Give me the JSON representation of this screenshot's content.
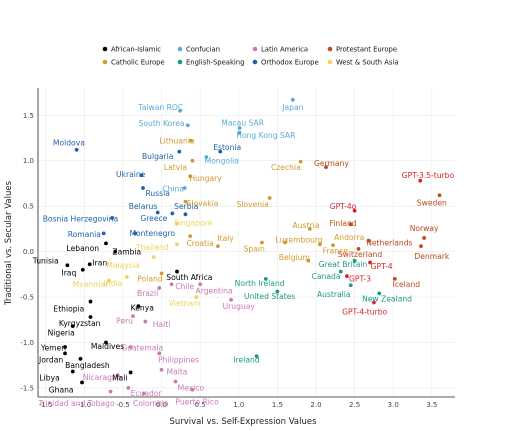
{
  "chart_data": {
    "type": "scatter",
    "title": "",
    "xlabel": "Survival vs. Self-Expression Values",
    "ylabel": "Traditional vs. Secular Values",
    "xlim": [
      -1.6,
      3.8
    ],
    "ylim": [
      -1.6,
      1.8
    ],
    "xticks": [
      -1.5,
      -1.0,
      -0.5,
      0.0,
      0.5,
      1.0,
      1.5,
      2.0,
      2.5,
      3.0,
      3.5
    ],
    "yticks": [
      -1.5,
      -1.0,
      -0.5,
      0.0,
      0.5,
      1.0,
      1.5
    ],
    "xtick_labels": [
      "-1.5",
      "-1.0",
      "-0.5",
      "0.0",
      "0.5",
      "1.0",
      "1.5",
      "2.0",
      "2.5",
      "3.0",
      "3.5"
    ],
    "ytick_labels": [
      "-1.5",
      "-1.0",
      "-0.5",
      "0.0",
      "0.5",
      "1.0",
      "1.5"
    ],
    "grid": true,
    "legend_position": "top",
    "series": [
      {
        "key": "african_islamic",
        "name": "African-Islamic",
        "color": "#000000"
      },
      {
        "key": "confucian",
        "name": "Confucian",
        "color": "#5aabd6"
      },
      {
        "key": "latin_america",
        "name": "Latin America",
        "color": "#c77bb6"
      },
      {
        "key": "protestant_europe",
        "name": "Protestant Europe",
        "color": "#c0491e"
      },
      {
        "key": "catholic_europe",
        "name": "Catholic Europe",
        "color": "#d39a2a"
      },
      {
        "key": "english_speaking",
        "name": "English-Speaking",
        "color": "#1a9a85"
      },
      {
        "key": "orthodox_europe",
        "name": "Orthodox Europe",
        "color": "#1e62a8"
      },
      {
        "key": "west_south_asia",
        "name": "West & South Asia",
        "color": "#efd35a"
      },
      {
        "key": "llm",
        "name": "",
        "color": "#d62424"
      }
    ],
    "points": [
      {
        "label": "Japan",
        "group": "confucian",
        "x": 1.7,
        "y": 1.67,
        "lx": 1.7,
        "ly": 1.59
      },
      {
        "label": "Taiwan ROC",
        "group": "confucian",
        "x": 0.24,
        "y": 1.55,
        "lx": -0.01,
        "ly": 1.59
      },
      {
        "label": "South Korea",
        "group": "confucian",
        "x": 0.34,
        "y": 1.39,
        "lx": 0.0,
        "ly": 1.41
      },
      {
        "label": "Macau SAR",
        "group": "confucian",
        "x": 1.01,
        "y": 1.36,
        "lx": 1.05,
        "ly": 1.42
      },
      {
        "label": "Hong Kong SAR",
        "group": "confucian",
        "x": 1.01,
        "y": 1.31,
        "lx": 1.35,
        "ly": 1.28
      },
      {
        "label": "Mongolia",
        "group": "confucian",
        "x": 0.58,
        "y": 1.04,
        "lx": 0.78,
        "ly": 1.0
      },
      {
        "label": "China",
        "group": "confucian",
        "x": 0.3,
        "y": 0.7,
        "lx": 0.15,
        "ly": 0.69
      },
      {
        "label": "Estonia",
        "group": "orthodox_europe",
        "x": 0.76,
        "y": 1.1,
        "lx": 0.85,
        "ly": 1.15
      },
      {
        "label": "Bulgaria",
        "group": "orthodox_europe",
        "x": 0.23,
        "y": 1.1,
        "lx": -0.05,
        "ly": 1.05
      },
      {
        "label": "Moldova",
        "group": "orthodox_europe",
        "x": -1.1,
        "y": 1.12,
        "lx": -1.2,
        "ly": 1.2
      },
      {
        "label": "Ukraine",
        "group": "orthodox_europe",
        "x": -0.26,
        "y": 0.84,
        "lx": -0.4,
        "ly": 0.85
      },
      {
        "label": "Russia",
        "group": "orthodox_europe",
        "x": -0.24,
        "y": 0.7,
        "lx": -0.05,
        "ly": 0.64
      },
      {
        "label": "Belarus",
        "group": "orthodox_europe",
        "x": -0.05,
        "y": 0.43,
        "lx": -0.24,
        "ly": 0.5
      },
      {
        "label": "Serbia",
        "group": "orthodox_europe",
        "x": 0.14,
        "y": 0.42,
        "lx": 0.32,
        "ly": 0.5
      },
      {
        "label": "Greece",
        "group": "orthodox_europe",
        "x": 0.31,
        "y": 0.41,
        "lx": -0.1,
        "ly": 0.37
      },
      {
        "label": "Romania",
        "group": "orthodox_europe",
        "x": -0.75,
        "y": 0.2,
        "lx": -1.0,
        "ly": 0.19
      },
      {
        "label": "Montenegro",
        "group": "orthodox_europe",
        "x": -0.34,
        "y": 0.2,
        "lx": -0.12,
        "ly": 0.2
      },
      {
        "label": "Bosnia Herzegovina",
        "group": "orthodox_europe",
        "x": -0.64,
        "y": 0.37,
        "lx": -1.05,
        "ly": 0.36
      },
      {
        "label": "Lithuania",
        "group": "catholic_europe",
        "x": 0.38,
        "y": 1.22,
        "lx": 0.2,
        "ly": 1.22
      },
      {
        "label": "Latvia",
        "group": "catholic_europe",
        "x": 0.4,
        "y": 1.0,
        "lx": 0.18,
        "ly": 0.93
      },
      {
        "label": "Hungary",
        "group": "catholic_europe",
        "x": 0.37,
        "y": 0.83,
        "lx": 0.57,
        "ly": 0.81
      },
      {
        "label": "Czechia",
        "group": "catholic_europe",
        "x": 1.8,
        "y": 0.99,
        "lx": 1.61,
        "ly": 0.93
      },
      {
        "label": "Slovakia",
        "group": "catholic_europe",
        "x": 0.31,
        "y": 0.55,
        "lx": 0.53,
        "ly": 0.53
      },
      {
        "label": "Slovenia",
        "group": "catholic_europe",
        "x": 1.4,
        "y": 0.59,
        "lx": 1.18,
        "ly": 0.52
      },
      {
        "label": "Croatia",
        "group": "catholic_europe",
        "x": 0.37,
        "y": 0.17,
        "lx": 0.5,
        "ly": 0.09
      },
      {
        "label": "Poland",
        "group": "catholic_europe",
        "x": 0.0,
        "y": -0.24,
        "lx": -0.15,
        "ly": -0.3
      },
      {
        "label": "Italy",
        "group": "catholic_europe",
        "x": 0.73,
        "y": 0.06,
        "lx": 0.83,
        "ly": 0.15
      },
      {
        "label": "Spain",
        "group": "catholic_europe",
        "x": 1.3,
        "y": 0.1,
        "lx": 1.2,
        "ly": 0.03
      },
      {
        "label": "Austria",
        "group": "catholic_europe",
        "x": 1.92,
        "y": 0.25,
        "lx": 1.87,
        "ly": 0.29
      },
      {
        "label": "Luxembourg",
        "group": "catholic_europe",
        "x": 1.6,
        "y": 0.1,
        "lx": 1.78,
        "ly": 0.13
      },
      {
        "label": "Belgium",
        "group": "catholic_europe",
        "x": 1.9,
        "y": -0.1,
        "lx": 1.72,
        "ly": -0.06
      },
      {
        "label": "France",
        "group": "catholic_europe",
        "x": 2.05,
        "y": 0.08,
        "lx": 2.25,
        "ly": 0.01
      },
      {
        "label": "Andorra",
        "group": "catholic_europe",
        "x": 2.22,
        "y": 0.07,
        "lx": 2.43,
        "ly": 0.16
      },
      {
        "label": "Germany",
        "group": "protestant_europe",
        "x": 2.13,
        "y": 0.93,
        "lx": 2.2,
        "ly": 0.97
      },
      {
        "label": "Sweden",
        "group": "protestant_europe",
        "x": 3.6,
        "y": 0.62,
        "lx": 3.5,
        "ly": 0.54
      },
      {
        "label": "Finland",
        "group": "protestant_europe",
        "x": 2.45,
        "y": 0.3,
        "lx": 2.35,
        "ly": 0.31
      },
      {
        "label": "Netherlands",
        "group": "protestant_europe",
        "x": 2.68,
        "y": 0.12,
        "lx": 2.95,
        "ly": 0.1
      },
      {
        "label": "Switzerland",
        "group": "protestant_europe",
        "x": 2.55,
        "y": 0.03,
        "lx": 2.57,
        "ly": -0.03
      },
      {
        "label": "Norway",
        "group": "protestant_europe",
        "x": 3.4,
        "y": 0.15,
        "lx": 3.4,
        "ly": 0.26
      },
      {
        "label": "Denmark",
        "group": "protestant_europe",
        "x": 3.36,
        "y": 0.06,
        "lx": 3.5,
        "ly": -0.05
      },
      {
        "label": "Iceland",
        "group": "protestant_europe",
        "x": 3.02,
        "y": -0.3,
        "lx": 3.17,
        "ly": -0.36
      },
      {
        "label": "Great Britain",
        "group": "english_speaking",
        "x": 2.5,
        "y": -0.1,
        "lx": 2.35,
        "ly": -0.14
      },
      {
        "label": "Canada",
        "group": "english_speaking",
        "x": 2.32,
        "y": -0.22,
        "lx": 2.13,
        "ly": -0.27
      },
      {
        "label": "Australia",
        "group": "english_speaking",
        "x": 2.45,
        "y": -0.37,
        "lx": 2.23,
        "ly": -0.47
      },
      {
        "label": "New Zealand",
        "group": "english_speaking",
        "x": 2.82,
        "y": -0.46,
        "lx": 2.92,
        "ly": -0.52
      },
      {
        "label": "United States",
        "group": "english_speaking",
        "x": 1.5,
        "y": -0.44,
        "lx": 1.4,
        "ly": -0.49
      },
      {
        "label": "North Ireland",
        "group": "english_speaking",
        "x": 1.35,
        "y": -0.3,
        "lx": 1.27,
        "ly": -0.35
      },
      {
        "label": "Ireland",
        "group": "english_speaking",
        "x": 1.23,
        "y": -1.15,
        "lx": 1.1,
        "ly": -1.19
      },
      {
        "label": "Singapore",
        "group": "west_south_asia",
        "x": 0.2,
        "y": 0.31,
        "lx": 0.41,
        "ly": 0.32
      },
      {
        "label": "Thailand",
        "group": "west_south_asia",
        "x": 0.2,
        "y": 0.08,
        "lx": -0.12,
        "ly": 0.05
      },
      {
        "label": "Malaysia",
        "group": "west_south_asia",
        "x": -0.1,
        "y": -0.06,
        "lx": -0.5,
        "ly": -0.15
      },
      {
        "label": "India",
        "group": "west_south_asia",
        "x": -0.45,
        "y": -0.28,
        "lx": -0.63,
        "ly": -0.35
      },
      {
        "label": "Myanmar",
        "group": "west_south_asia",
        "x": -0.68,
        "y": -0.32,
        "lx": -0.92,
        "ly": -0.36
      },
      {
        "label": "Vietnam",
        "group": "west_south_asia",
        "x": 0.45,
        "y": -0.5,
        "lx": 0.3,
        "ly": -0.57
      },
      {
        "label": "Chile",
        "group": "latin_america",
        "x": 0.13,
        "y": -0.36,
        "lx": 0.3,
        "ly": -0.38
      },
      {
        "label": "Brazil",
        "group": "latin_america",
        "x": -0.03,
        "y": -0.4,
        "lx": -0.18,
        "ly": -0.46
      },
      {
        "label": "Argentina",
        "group": "latin_america",
        "x": 0.5,
        "y": -0.36,
        "lx": 0.68,
        "ly": -0.43
      },
      {
        "label": "Uruguay",
        "group": "latin_america",
        "x": 0.9,
        "y": -0.53,
        "lx": 1.0,
        "ly": -0.6
      },
      {
        "label": "Peru",
        "group": "latin_america",
        "x": -0.37,
        "y": -0.71,
        "lx": -0.48,
        "ly": -0.76
      },
      {
        "label": "Haiti",
        "group": "latin_america",
        "x": -0.21,
        "y": -0.77,
        "lx": 0.0,
        "ly": -0.8
      },
      {
        "label": "Guatemala",
        "group": "latin_america",
        "x": -0.4,
        "y": -1.05,
        "lx": -0.25,
        "ly": -1.06
      },
      {
        "label": "Philippines",
        "group": "latin_america",
        "x": -0.03,
        "y": -1.12,
        "lx": 0.22,
        "ly": -1.19
      },
      {
        "label": "Malta",
        "group": "latin_america",
        "x": 0.0,
        "y": -1.3,
        "lx": 0.2,
        "ly": -1.32
      },
      {
        "label": "Mexico",
        "group": "latin_america",
        "x": 0.18,
        "y": -1.43,
        "lx": 0.38,
        "ly": -1.5
      },
      {
        "label": "Nicaragua",
        "group": "latin_america",
        "x": -0.57,
        "y": -1.36,
        "lx": -0.77,
        "ly": -1.38
      },
      {
        "label": "Ecuador",
        "group": "latin_america",
        "x": -0.43,
        "y": -1.5,
        "lx": -0.2,
        "ly": -1.56
      },
      {
        "label": "Colombia",
        "group": "latin_america",
        "x": -0.23,
        "y": -1.56,
        "lx": -0.14,
        "ly": -1.67
      },
      {
        "label": "Trinidad and Tobago",
        "group": "latin_america",
        "x": -0.66,
        "y": -1.54,
        "lx": -1.1,
        "ly": -1.67
      },
      {
        "label": "Puerto Rico",
        "group": "latin_america",
        "x": 0.4,
        "y": -1.52,
        "lx": 0.46,
        "ly": -1.65
      },
      {
        "label": "Lebanon",
        "group": "african_islamic",
        "x": -0.72,
        "y": 0.09,
        "lx": -1.02,
        "ly": 0.04
      },
      {
        "label": "Zambia",
        "group": "african_islamic",
        "x": -0.6,
        "y": 0.0,
        "lx": -0.45,
        "ly": 0.0
      },
      {
        "label": "Tunisia",
        "group": "african_islamic",
        "x": -1.22,
        "y": -0.15,
        "lx": -1.5,
        "ly": -0.1
      },
      {
        "label": "Iraq",
        "group": "african_islamic",
        "x": -1.02,
        "y": -0.2,
        "lx": -1.2,
        "ly": -0.23
      },
      {
        "label": "Iran",
        "group": "african_islamic",
        "x": -0.93,
        "y": -0.14,
        "lx": -0.8,
        "ly": -0.12
      },
      {
        "label": "South Africa",
        "group": "african_islamic",
        "x": 0.2,
        "y": -0.22,
        "lx": 0.36,
        "ly": -0.28
      },
      {
        "label": "Ethiopia",
        "group": "african_islamic",
        "x": -0.92,
        "y": -0.55,
        "lx": -1.2,
        "ly": -0.63
      },
      {
        "label": "Kenya",
        "group": "african_islamic",
        "x": -0.3,
        "y": -0.6,
        "lx": -0.25,
        "ly": -0.62
      },
      {
        "label": "Kyrgyzstan",
        "group": "african_islamic",
        "x": -0.92,
        "y": -0.72,
        "lx": -1.06,
        "ly": -0.79
      },
      {
        "label": "Nigeria",
        "group": "african_islamic",
        "x": -1.15,
        "y": -0.82,
        "lx": -1.3,
        "ly": -0.89
      },
      {
        "label": "Maldives",
        "group": "african_islamic",
        "x": -0.72,
        "y": -1.0,
        "lx": -0.7,
        "ly": -1.04
      },
      {
        "label": "Yemen",
        "group": "african_islamic",
        "x": -1.25,
        "y": -1.05,
        "lx": -1.4,
        "ly": -1.06
      },
      {
        "label": "Jordan",
        "group": "african_islamic",
        "x": -1.25,
        "y": -1.12,
        "lx": -1.43,
        "ly": -1.19
      },
      {
        "label": "Bangladesh",
        "group": "african_islamic",
        "x": -1.05,
        "y": -1.18,
        "lx": -0.96,
        "ly": -1.25
      },
      {
        "label": "Libya",
        "group": "african_islamic",
        "x": -1.15,
        "y": -1.32,
        "lx": -1.45,
        "ly": -1.39
      },
      {
        "label": "Mali",
        "group": "african_islamic",
        "x": -0.4,
        "y": -1.33,
        "lx": -0.54,
        "ly": -1.39
      },
      {
        "label": "Ghana",
        "group": "african_islamic",
        "x": -1.03,
        "y": -1.44,
        "lx": -1.3,
        "ly": -1.52
      },
      {
        "label": "GPT-3.5-turbo",
        "group": "llm",
        "x": 3.35,
        "y": 0.78,
        "lx": 3.45,
        "ly": 0.84
      },
      {
        "label": "GPT-4o",
        "group": "llm",
        "x": 2.5,
        "y": 0.45,
        "lx": 2.35,
        "ly": 0.5
      },
      {
        "label": "GPT-3",
        "group": "llm",
        "x": 2.4,
        "y": -0.27,
        "lx": 2.57,
        "ly": -0.3
      },
      {
        "label": "GPT-4",
        "group": "llm",
        "x": 2.7,
        "y": -0.12,
        "lx": 2.85,
        "ly": -0.16
      },
      {
        "label": "GPT-4-turbo",
        "group": "llm",
        "x": 2.75,
        "y": -0.56,
        "lx": 2.63,
        "ly": -0.66
      }
    ]
  }
}
